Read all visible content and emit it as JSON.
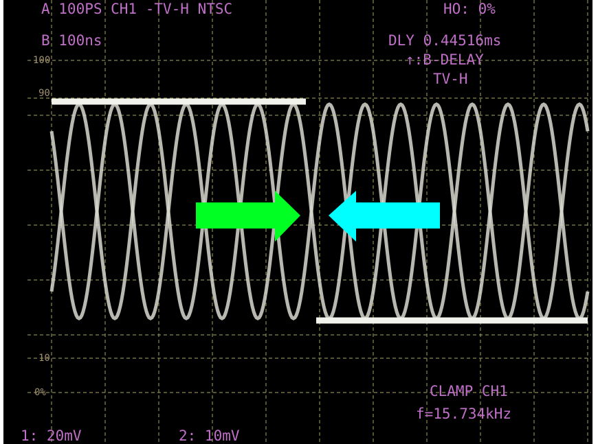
{
  "readouts": {
    "header": "A  100PS CH1  -TV-H NTSC",
    "timebase": "B  100ns",
    "holdoff": "HO:   0%",
    "delay": "DLY 0.44516ms",
    "trigger": "↑:B-DELAY",
    "trigger_source": "TV-H",
    "clamp": "CLAMP CH1",
    "frequency": "f=15.734kHz",
    "ch1": "1:  20mV",
    "ch2": "2:   10mV"
  },
  "graticule_labels": [
    "100",
    "90",
    "10",
    "0%"
  ]
}
